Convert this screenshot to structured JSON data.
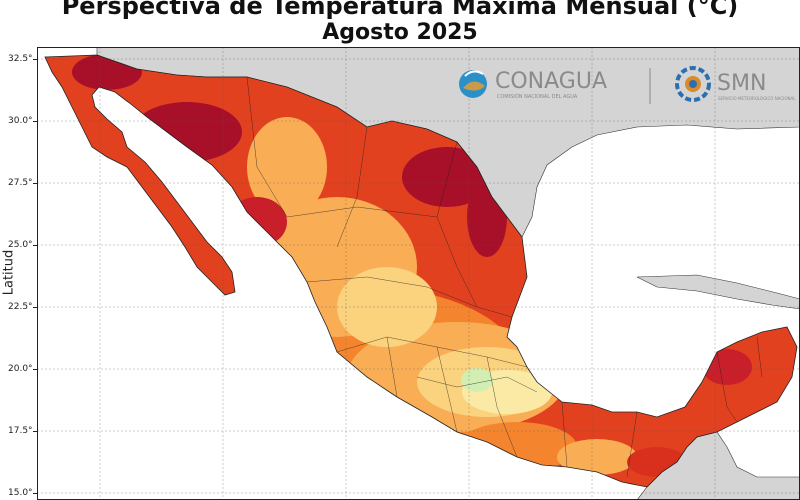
{
  "title_line1": "Perspectiva de Temperatura Máxima Mensual (°C)",
  "title_line2": "Agosto 2025",
  "ylabel": "Latitud",
  "lat_ticks": [
    "32.5°",
    "30.0°",
    "27.5°",
    "25.0°",
    "22.5°",
    "20.0°",
    "17.5°",
    "15.0°"
  ],
  "logos": {
    "conagua_name": "CONAGUA",
    "conagua_sub": "COMISIÓN NACIONAL DEL AGUA",
    "smn_name": "SMN",
    "smn_sub": "SERVICIO METEOROLÓGICO NACIONAL"
  },
  "colors": {
    "ocean": "#ffffff",
    "land_outside": "#d4d4d4",
    "dark_red": "#a8102a",
    "red": "#d9301e",
    "orange_red": "#ec5a22",
    "orange": "#f4852e",
    "light_orange": "#f9ad55",
    "yellow": "#fbd27e",
    "pale_yellow": "#fbeaa6",
    "light_green": "#d3eeb2"
  }
}
